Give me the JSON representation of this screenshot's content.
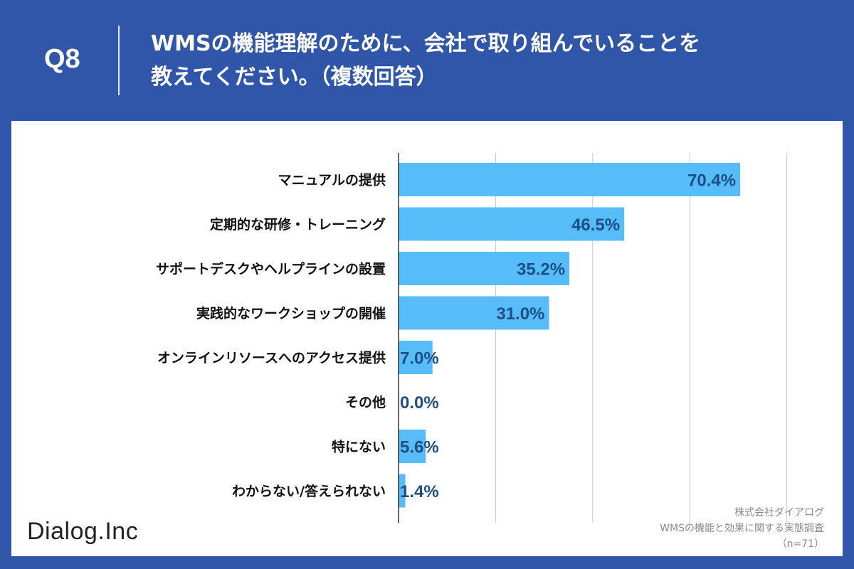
{
  "question": {
    "label": "Q8",
    "title_line1": "WMSの機能理解のために、会社で取り組んでいることを",
    "title_line2": "教えてください。（複数回答）"
  },
  "brand": "Dialog.Inc",
  "source": {
    "company": "株式会社ダイアログ",
    "survey": "WMSの機能と効果に関する実態調査",
    "sample": "（n=71）"
  },
  "colors": {
    "background": "#3056a9",
    "bar": "#56bdf8",
    "value_label": "#1d4f86",
    "category_label": "#111111",
    "gridline": "#c8c8c8"
  },
  "chart_data": {
    "type": "bar",
    "orientation": "horizontal",
    "categories": [
      "マニュアルの提供",
      "定期的な研修・トレーニング",
      "サポートデスクやヘルプラインの設置",
      "実践的なワークショップの開催",
      "オンラインリソースへのアクセス提供",
      "その他",
      "特にない",
      "わからない/答えられない"
    ],
    "values": [
      70.4,
      46.5,
      35.2,
      31.0,
      7.0,
      0.0,
      5.6,
      1.4
    ],
    "value_labels": [
      "70.4%",
      "46.5%",
      "35.2%",
      "31.0%",
      "7.0%",
      "0.0%",
      "5.6%",
      "1.4%"
    ],
    "xlim": [
      0,
      80
    ],
    "grid": true
  }
}
